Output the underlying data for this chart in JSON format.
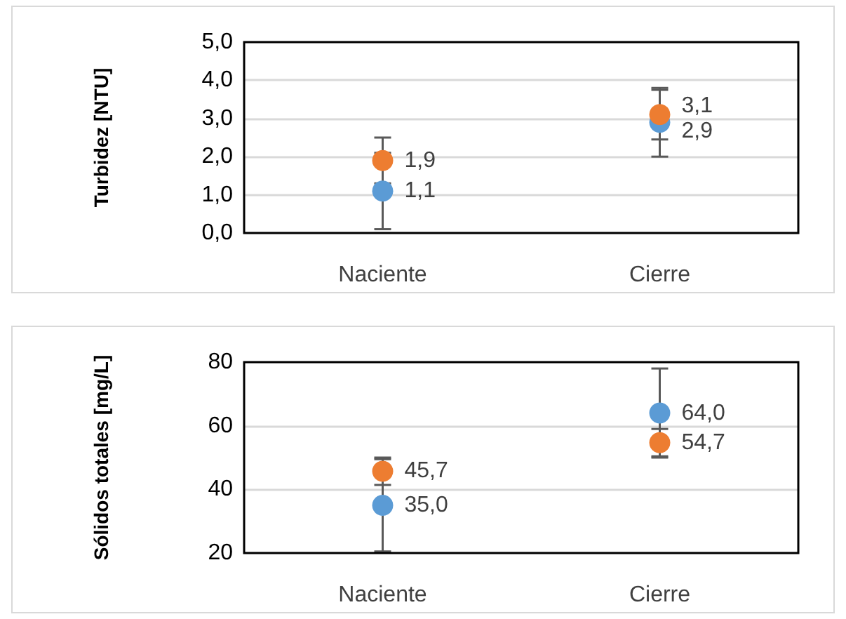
{
  "chart_data": [
    {
      "type": "scatter",
      "ylabel": "Turbidez [NTU]",
      "categories": [
        "Naciente",
        "Cierre"
      ],
      "series": [
        {
          "color": "#5b9bd5",
          "values": [
            1.1,
            2.9
          ],
          "errors": [
            1.0,
            0.9
          ],
          "value_labels": [
            "1,1",
            "2,9"
          ]
        },
        {
          "color": "#ed7d31",
          "values": [
            1.9,
            3.1
          ],
          "errors": [
            0.6,
            0.65
          ],
          "value_labels": [
            "1,9",
            "3,1"
          ]
        }
      ],
      "ylim": [
        0,
        5
      ],
      "yticks": [
        {
          "value": 0,
          "label": "0,0"
        },
        {
          "value": 1,
          "label": "1,0"
        },
        {
          "value": 2,
          "label": "2,0"
        },
        {
          "value": 3,
          "label": "3,0"
        },
        {
          "value": 4,
          "label": "4,0"
        },
        {
          "value": 5,
          "label": "5,0"
        }
      ],
      "grid": "y",
      "marker": "circle"
    },
    {
      "type": "scatter",
      "ylabel": "Sólidos totales [mg/L]",
      "categories": [
        "Naciente",
        "Cierre"
      ],
      "series": [
        {
          "color": "#5b9bd5",
          "values": [
            35.0,
            64.0
          ],
          "errors": [
            14.5,
            14
          ],
          "value_labels": [
            "35,0",
            "64,0"
          ]
        },
        {
          "color": "#ed7d31",
          "values": [
            45.7,
            54.7
          ],
          "errors": [
            4.3,
            4.3
          ],
          "value_labels": [
            "45,7",
            "54,7"
          ]
        }
      ],
      "ylim": [
        20,
        80
      ],
      "yticks": [
        20,
        40,
        60,
        80
      ],
      "grid": "y",
      "marker": "circle"
    }
  ]
}
